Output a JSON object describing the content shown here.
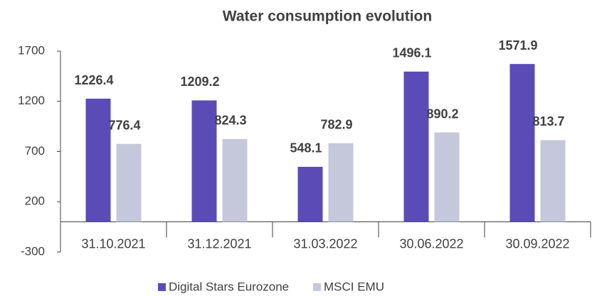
{
  "chart_data": {
    "type": "bar",
    "title": "Water consumption evolution",
    "categories": [
      "31.10.2021",
      "31.12.2021",
      "31.03.2022",
      "30.06.2022",
      "30.09.2022"
    ],
    "series": [
      {
        "name": "Digital Stars Eurozone",
        "color": "#5b4bb7",
        "values": [
          1226.4,
          1209.2,
          548.1,
          1496.1,
          1571.9
        ]
      },
      {
        "name": "MSCI EMU",
        "color": "#c5c8da",
        "values": [
          776.4,
          824.3,
          782.9,
          890.2,
          813.7
        ]
      }
    ],
    "ylim": [
      -300,
      1700
    ],
    "yticks": [
      -300,
      200,
      700,
      1200,
      1700
    ],
    "grid": false,
    "legend": "bottom"
  }
}
